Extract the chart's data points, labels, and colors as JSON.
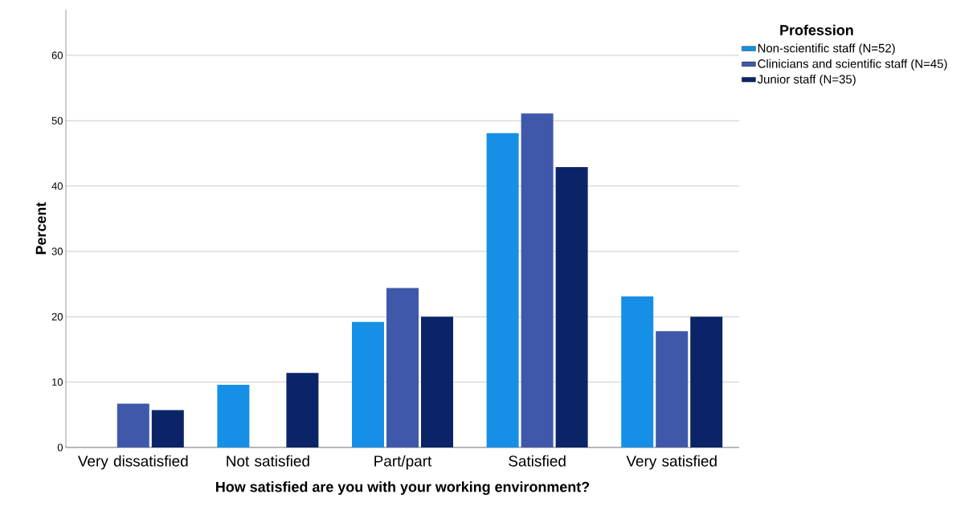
{
  "chart_data": {
    "type": "bar",
    "xlabel": "How satisfied are you with your working environment?",
    "ylabel": "Percent",
    "legend_title": "Profession",
    "categories": [
      "Very dissatisfied",
      "Not satisfied",
      "Part/part",
      "Satisfied",
      "Very satisfied"
    ],
    "series": [
      {
        "name": "Non-scientific staff (N=52)",
        "color": "#1590e6",
        "values": [
          0,
          9.6,
          19.2,
          48.1,
          23.1
        ]
      },
      {
        "name": "Clinicians and scientific staff (N=45)",
        "color": "#3f58aa",
        "values": [
          6.7,
          0,
          24.4,
          51.1,
          17.8
        ]
      },
      {
        "name": "Junior staff (N=35)",
        "color": "#0b2468",
        "values": [
          5.7,
          11.4,
          20,
          42.9,
          20
        ]
      }
    ],
    "ylim": [
      0,
      67
    ],
    "yticks": [
      0,
      10,
      20,
      30,
      40,
      50,
      60
    ],
    "grid": "y",
    "legend": "top right"
  }
}
